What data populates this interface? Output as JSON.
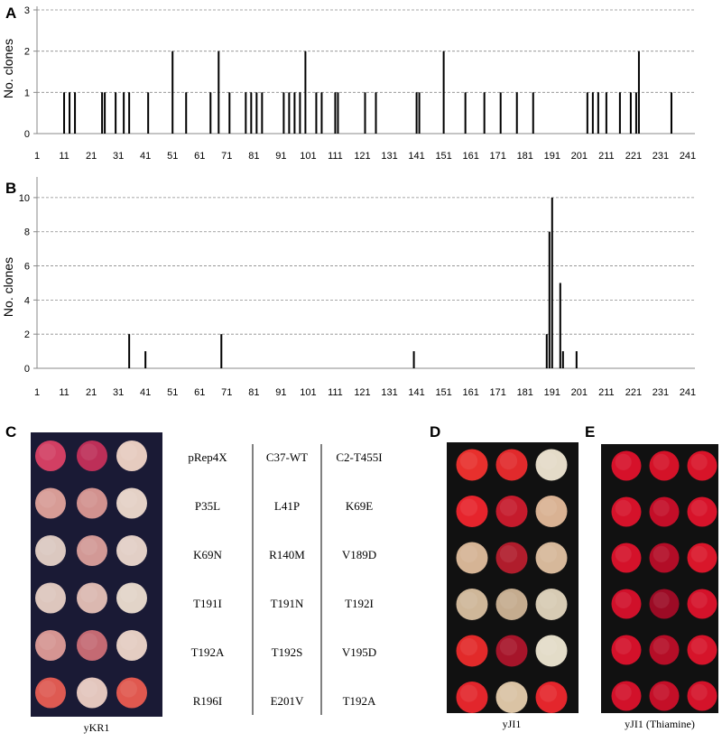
{
  "chart_data": [
    {
      "panel": "A",
      "type": "bar",
      "ylabel": "No. clones",
      "ylim": [
        0,
        3
      ],
      "yticks": [
        0,
        1,
        2,
        3
      ],
      "xlim": [
        1,
        241
      ],
      "xticks": [
        "1",
        "11",
        "21",
        "31",
        "41",
        "51",
        "61",
        "71",
        "81",
        "91",
        "101",
        "111",
        "121",
        "131",
        "141",
        "151",
        "161",
        "171",
        "181",
        "191",
        "201",
        "211",
        "221",
        "231",
        "241"
      ],
      "grid": "dashed horizontal",
      "bar_color": "#000000",
      "x": [
        11,
        13,
        15,
        25,
        26,
        30,
        33,
        35,
        42,
        51,
        56,
        65,
        68,
        72,
        78,
        80,
        82,
        84,
        92,
        94,
        96,
        98,
        100,
        104,
        106,
        111,
        112,
        122,
        126,
        141,
        142,
        151,
        159,
        166,
        172,
        178,
        184,
        204,
        206,
        208,
        211,
        216,
        220,
        222,
        223,
        235
      ],
      "values": [
        1,
        1,
        1,
        1,
        1,
        1,
        1,
        1,
        1,
        2,
        1,
        1,
        2,
        1,
        1,
        1,
        1,
        1,
        1,
        1,
        1,
        1,
        2,
        1,
        1,
        1,
        1,
        1,
        1,
        1,
        1,
        2,
        1,
        1,
        1,
        1,
        1,
        1,
        1,
        1,
        1,
        1,
        1,
        1,
        2,
        1
      ]
    },
    {
      "panel": "B",
      "type": "bar",
      "ylabel": "No. clones",
      "ylim": [
        0,
        11
      ],
      "yticks": [
        0,
        2,
        4,
        6,
        8,
        10
      ],
      "xlim": [
        1,
        241
      ],
      "xticks": [
        "1",
        "11",
        "21",
        "31",
        "41",
        "51",
        "61",
        "71",
        "81",
        "91",
        "101",
        "111",
        "121",
        "131",
        "141",
        "151",
        "161",
        "171",
        "181",
        "191",
        "201",
        "211",
        "221",
        "231",
        "241"
      ],
      "grid": "dashed horizontal",
      "bar_color": "#000000",
      "x": [
        35,
        41,
        69,
        140,
        189,
        190,
        191,
        194,
        195,
        200
      ],
      "values": [
        2,
        1,
        2,
        1,
        2,
        8,
        10,
        5,
        1,
        1
      ]
    }
  ],
  "panel_c": {
    "letter": "C",
    "strain": "yKR1",
    "plate_color": "#1a1a35",
    "spot_colors": [
      [
        "#d23f63",
        "#bd2f58",
        "#e6cbbf"
      ],
      [
        "#d79c96",
        "#d2928f",
        "#e4d1c6"
      ],
      [
        "#dbc8c0",
        "#d29996",
        "#e2cfc6"
      ],
      [
        "#ddc6bd",
        "#dbb8b0",
        "#e2d4c8"
      ],
      [
        "#d59592",
        "#c46a73",
        "#e4cdc2"
      ],
      [
        "#de5a52",
        "#e3c6bd",
        "#e0584f"
      ]
    ],
    "labels": [
      [
        "pRep4X",
        "C37-WT",
        "C2-T455I"
      ],
      [
        "P35L",
        "L41P",
        "K69E"
      ],
      [
        "K69N",
        "R140M",
        "V189D"
      ],
      [
        "T191I",
        "T191N",
        "T192I"
      ],
      [
        "T192A",
        "T192S",
        "V195D"
      ],
      [
        "R196I",
        "E201V",
        "T192A"
      ]
    ]
  },
  "panel_d": {
    "letter": "D",
    "strain": "yJI1",
    "plate_color": "#111111",
    "spot_colors": [
      [
        "#e8302d",
        "#e12a2c",
        "#e4dbc8"
      ],
      [
        "#e6242c",
        "#c51b2c",
        "#d9b293"
      ],
      [
        "#d5b495",
        "#b01d2c",
        "#d6b89a"
      ],
      [
        "#cfb799",
        "#c5ac8f",
        "#d7cbb4"
      ],
      [
        "#e22a2a",
        "#a6152a",
        "#e3dcc8"
      ],
      [
        "#e2262c",
        "#dac3a4",
        "#e4262c"
      ]
    ]
  },
  "panel_e": {
    "letter": "E",
    "strain": "yJI1 (Thiamine)",
    "plate_color": "#111111",
    "spot_colors": [
      [
        "#d6112a",
        "#d41228",
        "#d81429"
      ],
      [
        "#d5122a",
        "#c30e28",
        "#d7132a"
      ],
      [
        "#d4122a",
        "#b20d27",
        "#d9162a"
      ],
      [
        "#d0102a",
        "#9c0b25",
        "#d4122a"
      ],
      [
        "#d3112a",
        "#b50e27",
        "#d6142a"
      ],
      [
        "#d2112a",
        "#c40f28",
        "#d4132a"
      ]
    ]
  }
}
